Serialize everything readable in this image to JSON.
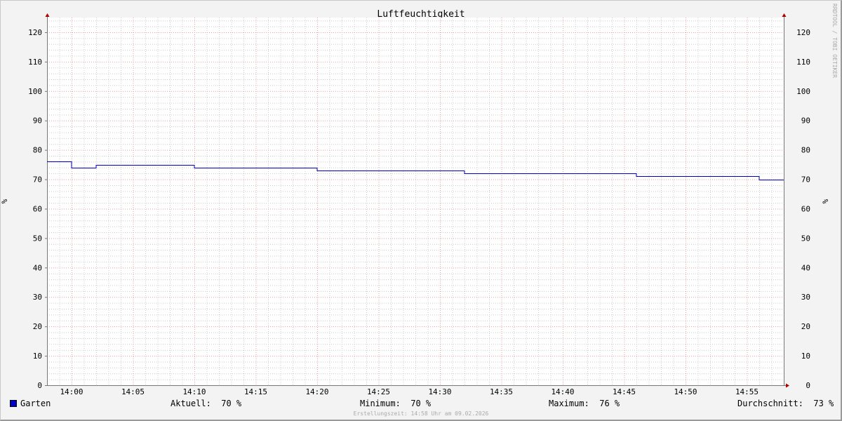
{
  "chart_data": {
    "type": "line",
    "title": "Luftfeuchtigkeit",
    "ylabel": "%",
    "ylim": [
      0,
      125
    ],
    "yticks": [
      0,
      10,
      20,
      30,
      40,
      50,
      60,
      70,
      80,
      90,
      100,
      110,
      120
    ],
    "xlim": [
      "13:58",
      "14:58"
    ],
    "xticks": [
      "14:00",
      "14:05",
      "14:10",
      "14:15",
      "14:20",
      "14:25",
      "14:30",
      "14:35",
      "14:40",
      "14:45",
      "14:50",
      "14:55"
    ],
    "grid": true,
    "series": [
      {
        "name": "Garten",
        "color": "#0000cc",
        "step": true,
        "points": [
          {
            "x": "13:58",
            "y": 76
          },
          {
            "x": "14:00",
            "y": 74
          },
          {
            "x": "14:02",
            "y": 75
          },
          {
            "x": "14:10",
            "y": 74
          },
          {
            "x": "14:20",
            "y": 73
          },
          {
            "x": "14:32",
            "y": 72
          },
          {
            "x": "14:46",
            "y": 71
          },
          {
            "x": "14:56",
            "y": 70
          },
          {
            "x": "14:58",
            "y": 70
          }
        ]
      }
    ]
  },
  "legend": {
    "series_name": "Garten",
    "current": "Aktuell:  70 %",
    "minimum": "Minimum:  70 %",
    "maximum": "Maximum:  76 %",
    "average": "Durchschnitt:  73 %"
  },
  "watermark": "RRDTOOL / TOBI OETIKER",
  "footer": "Erstellungszeit: 14:58 Uhr am 09.02.2026"
}
